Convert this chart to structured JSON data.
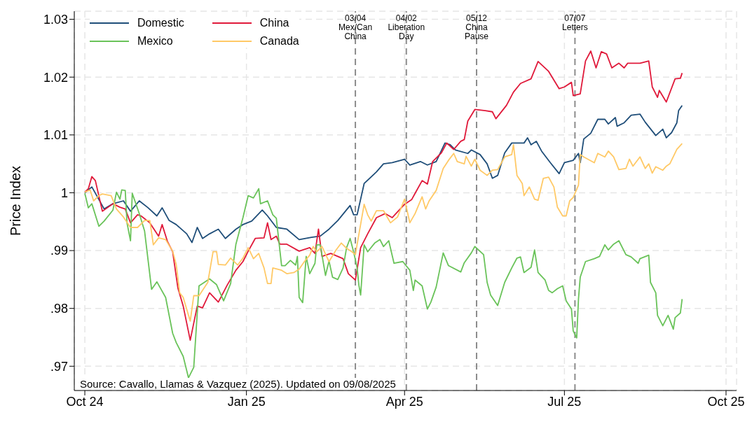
{
  "chart_data": {
    "type": "line",
    "ylabel": "Price Index",
    "xlim": [
      "2024-09-25",
      "2025-10-07"
    ],
    "xticks": [
      {
        "value": "2024-10-01",
        "label": "Oct 24"
      },
      {
        "value": "2025-01-01",
        "label": "Jan 25"
      },
      {
        "value": "2025-04-01",
        "label": "Apr 25"
      },
      {
        "value": "2025-07-01",
        "label": "Jul 25"
      },
      {
        "value": "2025-10-01",
        "label": "Oct 25"
      }
    ],
    "ylim": [
      0.9658,
      1.0314
    ],
    "yticks": [
      {
        "value": 0.97,
        "label": ".97"
      },
      {
        "value": 0.98,
        "label": ".98"
      },
      {
        "value": 0.99,
        "label": ".99"
      },
      1,
      1.01,
      1.02,
      1.03
    ],
    "grid": true,
    "legend": "top left",
    "marker": "none",
    "line_style": "solid",
    "ref_lines": [
      {
        "axis": "x",
        "value": "2025-03-04",
        "label": "03/04\nMex/Can\nChina",
        "color": "#8c8c8c",
        "line_style": "dashed"
      },
      {
        "axis": "x",
        "value": "2025-04-02",
        "label": "04/02\nLiberation\nDay",
        "color": "#8c8c8c",
        "line_style": "dashed"
      },
      {
        "axis": "x",
        "value": "2025-05-12",
        "label": "05/12\nChina\nPause",
        "color": "#8c8c8c",
        "line_style": "dashed"
      },
      {
        "axis": "x",
        "value": "2025-07-07",
        "label": "07/07\nLetters",
        "color": "#8c8c8c",
        "line_style": "dashed"
      }
    ],
    "annotations": [
      "Source: Cavallo, Llamas & Vazquez (2025). Updated on 09/08/2025"
    ],
    "series": [
      {
        "name": "Domestic",
        "color": "#1f4e79",
        "x": [
          "2024-10-01",
          "2024-10-05",
          "2024-10-12",
          "2024-10-17",
          "2024-10-23",
          "2024-10-27",
          "2024-11-01",
          "2024-11-06",
          "2024-11-11",
          "2024-11-14",
          "2024-11-18",
          "2024-11-22",
          "2024-11-28",
          "2024-12-01",
          "2024-12-04",
          "2024-12-07",
          "2024-12-11",
          "2024-12-16",
          "2024-12-20",
          "2024-12-26",
          "2024-12-30",
          "2025-01-04",
          "2025-01-10",
          "2025-01-13",
          "2025-01-18",
          "2025-01-24",
          "2025-01-31",
          "2025-02-07",
          "2025-02-12",
          "2025-02-17",
          "2025-02-22",
          "2025-03-01",
          "2025-03-03",
          "2025-03-05",
          "2025-03-09",
          "2025-03-16",
          "2025-03-20",
          "2025-03-25",
          "2025-04-01",
          "2025-04-04",
          "2025-04-10",
          "2025-04-14",
          "2025-04-19",
          "2025-04-24",
          "2025-04-27",
          "2025-04-30",
          "2025-05-07",
          "2025-05-09",
          "2025-05-14",
          "2025-05-18",
          "2025-05-21",
          "2025-05-24",
          "2025-05-28",
          "2025-06-01",
          "2025-06-08",
          "2025-06-10",
          "2025-06-12",
          "2025-06-15",
          "2025-06-18",
          "2025-06-23",
          "2025-06-28",
          "2025-07-01",
          "2025-07-06",
          "2025-07-09",
          "2025-07-10",
          "2025-07-12",
          "2025-07-16",
          "2025-07-20",
          "2025-07-24",
          "2025-07-26",
          "2025-07-30",
          "2025-07-31",
          "2025-08-04",
          "2025-08-08",
          "2025-08-13",
          "2025-08-16",
          "2025-08-22",
          "2025-08-26",
          "2025-08-28",
          "2025-08-31",
          "2025-09-03",
          "2025-09-04",
          "2025-09-06"
        ],
        "values": [
          1.0,
          1.001,
          0.9972,
          0.9981,
          0.9986,
          0.9968,
          0.9986,
          0.9974,
          0.996,
          0.9974,
          0.9952,
          0.9945,
          0.9929,
          0.9914,
          0.994,
          0.9921,
          0.9929,
          0.9937,
          0.9921,
          0.9937,
          0.9945,
          0.9951,
          0.997,
          0.996,
          0.994,
          0.9937,
          0.9919,
          0.9923,
          0.9925,
          0.9937,
          0.9952,
          0.9978,
          0.9962,
          0.9962,
          1.0016,
          1.0036,
          1.005,
          1.0052,
          1.0058,
          1.0048,
          1.0054,
          1.0048,
          1.0054,
          1.0086,
          1.0083,
          1.0074,
          1.0068,
          1.0074,
          1.0066,
          1.005,
          1.0025,
          1.003,
          1.0069,
          1.0086,
          1.0086,
          1.0095,
          1.0083,
          1.0089,
          1.0072,
          1.0052,
          1.0033,
          1.0052,
          1.0056,
          1.0068,
          1.0052,
          1.0093,
          1.0103,
          1.0127,
          1.0127,
          1.0119,
          1.013,
          1.0115,
          1.0121,
          1.0134,
          1.0136,
          1.0122,
          1.0099,
          1.011,
          1.0095,
          1.0104,
          1.0121,
          1.0142,
          1.0151
        ]
      },
      {
        "name": "China",
        "color": "#e0193a",
        "x": [
          "2024-10-01",
          "2024-10-03",
          "2024-10-05",
          "2024-10-07",
          "2024-10-11",
          "2024-10-17",
          "2024-10-21",
          "2024-10-24",
          "2024-10-27",
          "2024-10-31",
          "2024-11-02",
          "2024-11-07",
          "2024-11-12",
          "2024-11-14",
          "2024-11-17",
          "2024-11-20",
          "2024-11-23",
          "2024-11-26",
          "2024-11-30",
          "2024-12-04",
          "2024-12-07",
          "2024-12-11",
          "2024-12-16",
          "2024-12-21",
          "2024-12-26",
          "2024-12-30",
          "2025-01-02",
          "2025-01-06",
          "2025-01-11",
          "2025-01-13",
          "2025-01-15",
          "2025-01-18",
          "2025-01-20",
          "2025-01-24",
          "2025-01-31",
          "2025-02-06",
          "2025-02-09",
          "2025-02-11",
          "2025-02-13",
          "2025-02-18",
          "2025-02-25",
          "2025-02-28",
          "2025-03-04",
          "2025-03-07",
          "2025-03-11",
          "2025-03-16",
          "2025-03-21",
          "2025-03-25",
          "2025-04-01",
          "2025-04-05",
          "2025-04-07",
          "2025-04-11",
          "2025-04-14",
          "2025-04-17",
          "2025-04-22",
          "2025-04-25",
          "2025-04-29",
          "2025-05-03",
          "2025-05-05",
          "2025-05-07",
          "2025-05-11",
          "2025-05-17",
          "2025-05-21",
          "2025-05-23",
          "2025-05-29",
          "2025-06-02",
          "2025-06-06",
          "2025-06-12",
          "2025-06-16",
          "2025-06-22",
          "2025-06-28",
          "2025-07-01",
          "2025-07-05",
          "2025-07-06",
          "2025-07-10",
          "2025-07-13",
          "2025-07-16",
          "2025-07-19",
          "2025-07-22",
          "2025-07-25",
          "2025-07-28",
          "2025-08-01",
          "2025-08-04",
          "2025-08-06",
          "2025-08-13",
          "2025-08-18",
          "2025-08-20",
          "2025-08-23",
          "2025-08-24",
          "2025-08-28",
          "2025-09-02",
          "2025-09-05",
          "2025-09-06"
        ],
        "values": [
          1.0001,
          1.0007,
          1.0028,
          1.0021,
          0.9968,
          0.9981,
          0.9975,
          0.9972,
          0.9948,
          0.9962,
          0.996,
          0.9948,
          0.9925,
          0.9945,
          0.9916,
          0.9898,
          0.9835,
          0.9804,
          0.9745,
          0.9804,
          0.9801,
          0.9827,
          0.9811,
          0.984,
          0.9866,
          0.9881,
          0.9899,
          0.9921,
          0.9922,
          0.9948,
          0.9919,
          0.9925,
          0.9911,
          0.9911,
          0.9899,
          0.9905,
          0.9895,
          0.9937,
          0.989,
          0.9895,
          0.9886,
          0.986,
          0.9849,
          0.9905,
          0.9929,
          0.9957,
          0.9964,
          0.9957,
          0.998,
          0.9988,
          0.9999,
          1.0021,
          1.0015,
          1.0054,
          1.0069,
          1.0086,
          1.0075,
          1.0089,
          1.0092,
          1.0124,
          1.0144,
          1.0142,
          1.014,
          1.0128,
          1.0151,
          1.0174,
          1.0189,
          1.0197,
          1.0227,
          1.021,
          1.018,
          1.0183,
          1.0191,
          1.0168,
          1.0171,
          1.0228,
          1.0245,
          1.0216,
          1.0244,
          1.024,
          1.0216,
          1.0224,
          1.0216,
          1.0224,
          1.0224,
          1.0228,
          1.0183,
          1.0165,
          1.0177,
          1.0157,
          1.0197,
          1.0198,
          1.0207
        ]
      },
      {
        "name": "Mexico",
        "color": "#6ac35a",
        "x": [
          "2024-10-01",
          "2024-10-03",
          "2024-10-05",
          "2024-10-09",
          "2024-10-12",
          "2024-10-17",
          "2024-10-19",
          "2024-10-21",
          "2024-10-22",
          "2024-10-24",
          "2024-10-25",
          "2024-10-27",
          "2024-10-28",
          "2024-11-01",
          "2024-11-04",
          "2024-11-08",
          "2024-11-11",
          "2024-11-16",
          "2024-11-20",
          "2024-11-22",
          "2024-11-26",
          "2024-11-29",
          "2024-12-02",
          "2024-12-05",
          "2024-12-08",
          "2024-12-11",
          "2024-12-15",
          "2024-12-19",
          "2024-12-23",
          "2024-12-26",
          "2024-12-30",
          "2025-01-02",
          "2025-01-05",
          "2025-01-08",
          "2025-01-09",
          "2025-01-13",
          "2025-01-16",
          "2025-01-18",
          "2025-01-21",
          "2025-01-23",
          "2025-01-26",
          "2025-01-29",
          "2025-01-30",
          "2025-01-31",
          "2025-02-02",
          "2025-02-04",
          "2025-02-06",
          "2025-02-09",
          "2025-02-10",
          "2025-02-12",
          "2025-02-15",
          "2025-02-17",
          "2025-02-19",
          "2025-02-22",
          "2025-02-25",
          "2025-02-27",
          "2025-03-01",
          "2025-03-03",
          "2025-03-05",
          "2025-03-06",
          "2025-03-07",
          "2025-03-09",
          "2025-03-11",
          "2025-03-15",
          "2025-03-18",
          "2025-03-20",
          "2025-03-23",
          "2025-03-26",
          "2025-03-31",
          "2025-04-04",
          "2025-04-06",
          "2025-04-07",
          "2025-04-11",
          "2025-04-14",
          "2025-04-16",
          "2025-04-19",
          "2025-04-23",
          "2025-04-26",
          "2025-05-03",
          "2025-05-05",
          "2025-05-09",
          "2025-05-11",
          "2025-05-16",
          "2025-05-18",
          "2025-05-20",
          "2025-05-24",
          "2025-05-28",
          "2025-06-01",
          "2025-06-04",
          "2025-06-06",
          "2025-06-08",
          "2025-06-12",
          "2025-06-14",
          "2025-06-16",
          "2025-06-20",
          "2025-06-22",
          "2025-06-24",
          "2025-06-27",
          "2025-06-30",
          "2025-07-02",
          "2025-07-05",
          "2025-07-06",
          "2025-07-08",
          "2025-07-09",
          "2025-07-10",
          "2025-07-13",
          "2025-07-18",
          "2025-07-21",
          "2025-07-24",
          "2025-07-26",
          "2025-07-29",
          "2025-08-01",
          "2025-08-05",
          "2025-08-08",
          "2025-08-12",
          "2025-08-13",
          "2025-08-18",
          "2025-08-19",
          "2025-08-22",
          "2025-08-23",
          "2025-08-26",
          "2025-08-29",
          "2025-09-01",
          "2025-09-02",
          "2025-09-05",
          "2025-09-06"
        ],
        "values": [
          0.9999,
          0.9974,
          0.9981,
          0.9942,
          0.9951,
          0.997,
          1.0001,
          0.9989,
          1.0005,
          1.0004,
          0.9948,
          0.9917,
          0.9999,
          0.9964,
          0.9934,
          0.9833,
          0.9846,
          0.9819,
          0.9757,
          0.9741,
          0.9717,
          0.968,
          0.9698,
          0.9839,
          0.9845,
          0.9851,
          0.9841,
          0.9813,
          0.9843,
          0.9911,
          0.9957,
          0.9995,
          0.9991,
          1.0007,
          0.9981,
          0.9986,
          0.9962,
          0.9956,
          0.9874,
          0.9874,
          0.9883,
          0.9875,
          0.989,
          0.9819,
          0.981,
          0.989,
          0.986,
          0.9878,
          0.991,
          0.991,
          0.9857,
          0.9882,
          0.9854,
          0.985,
          0.987,
          0.9905,
          0.9921,
          0.9898,
          0.987,
          0.984,
          0.9823,
          0.991,
          0.9898,
          0.9913,
          0.9919,
          0.9907,
          0.9917,
          0.9878,
          0.9881,
          0.9866,
          0.9831,
          0.9849,
          0.9839,
          0.9799,
          0.9811,
          0.9837,
          0.9896,
          0.9874,
          0.9863,
          0.9879,
          0.9896,
          0.9907,
          0.9893,
          0.9845,
          0.9823,
          0.9805,
          0.9845,
          0.987,
          0.9887,
          0.9889,
          0.9862,
          0.9871,
          0.9901,
          0.9862,
          0.9849,
          0.9831,
          0.9827,
          0.9834,
          0.9839,
          0.9813,
          0.9799,
          0.9761,
          0.9749,
          0.9816,
          0.9854,
          0.9881,
          0.9886,
          0.989,
          0.991,
          0.9901,
          0.9911,
          0.9917,
          0.9893,
          0.9889,
          0.9878,
          0.9886,
          0.9892,
          0.9845,
          0.9827,
          0.9788,
          0.977,
          0.9788,
          0.9764,
          0.9784,
          0.9792,
          0.9816
        ]
      },
      {
        "name": "Canada",
        "color": "#ffc966",
        "x": [
          "2024-10-01",
          "2024-10-04",
          "2024-10-06",
          "2024-10-09",
          "2024-10-11",
          "2024-10-16",
          "2024-10-19",
          "2024-10-23",
          "2024-10-27",
          "2024-10-31",
          "2024-11-04",
          "2024-11-07",
          "2024-11-09",
          "2024-11-12",
          "2024-11-16",
          "2024-11-20",
          "2024-11-22",
          "2024-11-24",
          "2024-11-26",
          "2024-11-30",
          "2024-12-02",
          "2024-12-05",
          "2024-12-10",
          "2024-12-13",
          "2024-12-15",
          "2024-12-16",
          "2024-12-20",
          "2024-12-23",
          "2024-12-27",
          "2024-12-30",
          "2025-01-02",
          "2025-01-05",
          "2025-01-08",
          "2025-01-11",
          "2025-01-13",
          "2025-01-15",
          "2025-01-16",
          "2025-01-21",
          "2025-01-24",
          "2025-01-28",
          "2025-01-31",
          "2025-02-03",
          "2025-02-06",
          "2025-02-08",
          "2025-02-10",
          "2025-02-13",
          "2025-02-17",
          "2025-02-21",
          "2025-02-24",
          "2025-02-27",
          "2025-03-02",
          "2025-03-04",
          "2025-03-06",
          "2025-03-09",
          "2025-03-11",
          "2025-03-13",
          "2025-03-16",
          "2025-03-20",
          "2025-03-24",
          "2025-03-28",
          "2025-04-01",
          "2025-04-04",
          "2025-04-07",
          "2025-04-11",
          "2025-04-13",
          "2025-04-15",
          "2025-04-19",
          "2025-04-23",
          "2025-04-26",
          "2025-04-29",
          "2025-05-01",
          "2025-05-05",
          "2025-05-06",
          "2025-05-09",
          "2025-05-11",
          "2025-05-14",
          "2025-05-18",
          "2025-05-21",
          "2025-05-24",
          "2025-05-28",
          "2025-06-01",
          "2025-06-02",
          "2025-06-04",
          "2025-06-07",
          "2025-06-08",
          "2025-06-11",
          "2025-06-14",
          "2025-06-16",
          "2025-06-19",
          "2025-06-22",
          "2025-06-25",
          "2025-06-27",
          "2025-06-30",
          "2025-07-02",
          "2025-07-04",
          "2025-07-06",
          "2025-07-09",
          "2025-07-10",
          "2025-07-12",
          "2025-07-18",
          "2025-07-20",
          "2025-07-24",
          "2025-07-26",
          "2025-07-29",
          "2025-08-01",
          "2025-08-05",
          "2025-08-07",
          "2025-08-09",
          "2025-08-13",
          "2025-08-16",
          "2025-08-18",
          "2025-08-20",
          "2025-08-22",
          "2025-08-26",
          "2025-08-28",
          "2025-08-30",
          "2025-09-03",
          "2025-09-06"
        ],
        "values": [
          1.0001,
          1.0005,
          0.9986,
          0.9995,
          0.9998,
          0.9995,
          0.9972,
          0.9958,
          0.994,
          0.994,
          0.9952,
          0.9952,
          0.991,
          0.9922,
          0.9919,
          0.9899,
          0.9876,
          0.9827,
          0.9819,
          0.9778,
          0.9822,
          0.9822,
          0.9845,
          0.9898,
          0.9898,
          0.9876,
          0.9875,
          0.9887,
          0.9875,
          0.9887,
          0.9905,
          0.9886,
          0.9895,
          0.987,
          0.9843,
          0.9843,
          0.987,
          0.9866,
          0.986,
          0.9862,
          0.9868,
          0.9881,
          0.9892,
          0.9907,
          0.9898,
          0.9907,
          0.9881,
          0.9901,
          0.9913,
          0.9904,
          0.9898,
          0.9893,
          0.9928,
          0.998,
          0.9962,
          0.9951,
          0.9969,
          0.9969,
          0.9948,
          0.9958,
          0.9989,
          0.9948,
          0.9964,
          0.9993,
          0.9972,
          0.9986,
          1.0004,
          1.0042,
          1.0056,
          1.0068,
          1.0054,
          1.005,
          1.0063,
          1.0046,
          1.0058,
          1.0039,
          1.003,
          1.0039,
          1.004,
          1.0062,
          1.0066,
          1.0083,
          1.003,
          1.0016,
          0.9995,
          1.001,
          0.9989,
          0.9987,
          1.0025,
          1.0027,
          1.001,
          0.9975,
          0.996,
          0.996,
          0.9986,
          0.9992,
          1.0013,
          1.0066,
          1.0062,
          1.0052,
          1.0068,
          1.0062,
          1.0072,
          1.0062,
          1.004,
          1.0042,
          1.0058,
          1.0046,
          1.0062,
          1.0042,
          1.005,
          1.0034,
          1.0045,
          1.0039,
          1.0046,
          1.005,
          1.0075,
          1.0085
        ]
      }
    ]
  }
}
